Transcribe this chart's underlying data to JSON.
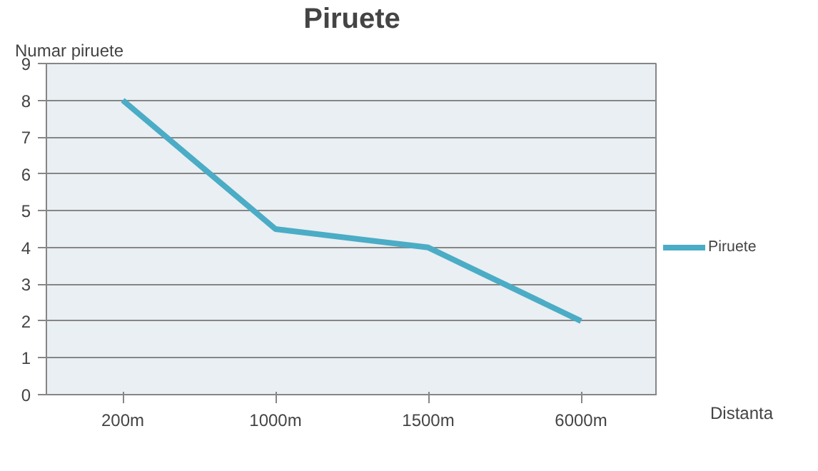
{
  "chart_data": {
    "type": "line",
    "title": "Piruete",
    "xlabel": "Distanta",
    "ylabel": "Numar piruete",
    "categories": [
      "200m",
      "1000m",
      "1500m",
      "6000m"
    ],
    "series": [
      {
        "name": "Piruete",
        "color": "#4bacc6",
        "values": [
          8,
          4.5,
          4,
          2
        ]
      }
    ],
    "ylim": [
      0,
      9
    ],
    "yticks": [
      0,
      1,
      2,
      3,
      4,
      5,
      6,
      7,
      8,
      9
    ],
    "grid": "y",
    "legend": "right",
    "marker": "none",
    "line_style": "solid"
  }
}
